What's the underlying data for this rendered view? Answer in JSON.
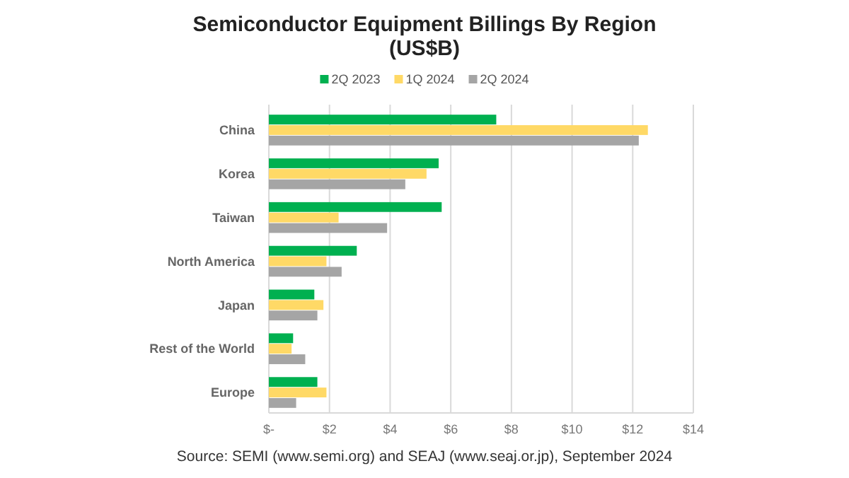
{
  "chart_data": {
    "type": "bar",
    "orientation": "horizontal",
    "title": "Semiconductor Equipment Billings By Region\n(US$B)",
    "categories": [
      "China",
      "Korea",
      "Taiwan",
      "North America",
      "Japan",
      "Rest of the World",
      "Europe"
    ],
    "series": [
      {
        "name": "2Q 2023",
        "color": "#00b050",
        "values": [
          7.5,
          5.6,
          5.7,
          2.9,
          1.5,
          0.8,
          1.6
        ]
      },
      {
        "name": "1Q 2024",
        "color": "#ffd966",
        "values": [
          12.5,
          5.2,
          2.3,
          1.9,
          1.8,
          0.75,
          1.9
        ]
      },
      {
        "name": "2Q 2024",
        "color": "#a5a5a5",
        "values": [
          12.2,
          4.5,
          3.9,
          2.4,
          1.6,
          1.2,
          0.9
        ]
      }
    ],
    "xlim": [
      0,
      14
    ],
    "xticks": [
      {
        "value": 0,
        "label": "$-"
      },
      {
        "value": 2,
        "label": "$2"
      },
      {
        "value": 4,
        "label": "$4"
      },
      {
        "value": 6,
        "label": "$6"
      },
      {
        "value": 8,
        "label": "$8"
      },
      {
        "value": 10,
        "label": "$10"
      },
      {
        "value": 12,
        "label": "$12"
      },
      {
        "value": 14,
        "label": "$14"
      }
    ],
    "grid": "x",
    "legend": "top",
    "annotations": [
      "Source: SEMI (www.semi.org) and SEAJ (www.seaj.or.jp), September 2024"
    ]
  }
}
